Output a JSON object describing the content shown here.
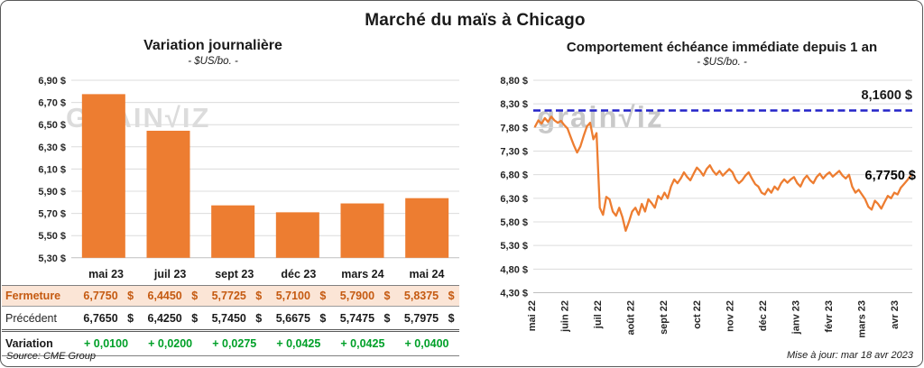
{
  "title": "Marché du maïs à Chicago",
  "watermark": "grain√iz",
  "source": "Source: CME Group",
  "updated": "Mise à jour: mar 18 avr 2023",
  "colors": {
    "series_orange": "#ED7D31",
    "target_blue": "#2323C8",
    "variation_green": "#00A028",
    "fermeture_text": "#C55A11",
    "fermeture_bg": "#FBE5D6",
    "gridline": "#DCDCDC",
    "axis": "#BFBFBF"
  },
  "chart_data": [
    {
      "type": "bar",
      "title": "Variation journalière",
      "subtitle": "- $US/bo. -",
      "categories": [
        "mai 23",
        "juil 23",
        "sept 23",
        "déc 23",
        "mars 24",
        "mai 24"
      ],
      "values": [
        6.775,
        6.445,
        5.7725,
        5.71,
        5.79,
        5.8375
      ],
      "ylim": [
        5.3,
        6.9
      ],
      "ytick_values": [
        6.9,
        6.7,
        6.5,
        6.3,
        6.1,
        5.9,
        5.7,
        5.5,
        5.3
      ],
      "ytick_labels": [
        "6,90 $",
        "6,70 $",
        "6,50 $",
        "6,30 $",
        "6,10 $",
        "5,90 $",
        "5,70 $",
        "5,50 $",
        "5,30 $"
      ],
      "bar_color": "#ED7D31",
      "grid": true,
      "legend": "none"
    },
    {
      "type": "line",
      "title": "Comportement échéance immédiate depuis 1 an",
      "subtitle": "- $US/bo. -",
      "x_labels": [
        "mai 22",
        "juin 22",
        "juil 22",
        "août 22",
        "sept 22",
        "oct 22",
        "nov 22",
        "déc 22",
        "janv 23",
        "févr 23",
        "mars 23",
        "avr 23"
      ],
      "ylim": [
        4.3,
        8.8
      ],
      "ytick_values": [
        8.8,
        8.3,
        7.8,
        7.3,
        6.8,
        6.3,
        5.8,
        5.3,
        4.8,
        4.3
      ],
      "ytick_labels": [
        "8,80 $",
        "8,30 $",
        "7,80 $",
        "7,30 $",
        "6,80 $",
        "6,30 $",
        "5,80 $",
        "5,30 $",
        "4,80 $",
        "4,30 $"
      ],
      "target_line": {
        "value": 8.16,
        "label": "8,1600 $",
        "color": "#2323C8",
        "style": "dashed"
      },
      "last_point": {
        "value": 6.775,
        "label": "6,7750 $"
      },
      "grid": true,
      "legend": "none",
      "series": [
        {
          "name": "échéance immédiate",
          "color": "#ED7D31",
          "values": [
            7.82,
            7.95,
            7.88,
            8.0,
            7.92,
            8.03,
            7.95,
            7.9,
            7.94,
            7.85,
            7.78,
            7.6,
            7.42,
            7.27,
            7.4,
            7.62,
            7.82,
            7.9,
            7.55,
            7.68,
            6.1,
            5.95,
            6.33,
            6.28,
            6.02,
            5.93,
            6.1,
            5.9,
            5.61,
            5.8,
            6.02,
            6.1,
            5.95,
            6.18,
            6.02,
            6.28,
            6.2,
            6.1,
            6.35,
            6.28,
            6.42,
            6.3,
            6.55,
            6.7,
            6.62,
            6.72,
            6.85,
            6.75,
            6.68,
            6.82,
            6.95,
            6.88,
            6.78,
            6.92,
            7.0,
            6.88,
            6.8,
            6.88,
            6.78,
            6.85,
            6.92,
            6.85,
            6.7,
            6.62,
            6.68,
            6.78,
            6.85,
            6.72,
            6.6,
            6.55,
            6.42,
            6.38,
            6.5,
            6.42,
            6.55,
            6.48,
            6.62,
            6.7,
            6.63,
            6.7,
            6.75,
            6.62,
            6.55,
            6.7,
            6.78,
            6.68,
            6.62,
            6.75,
            6.82,
            6.72,
            6.8,
            6.85,
            6.76,
            6.82,
            6.88,
            6.78,
            6.72,
            6.8,
            6.55,
            6.42,
            6.48,
            6.38,
            6.28,
            6.12,
            6.06,
            6.25,
            6.18,
            6.08,
            6.22,
            6.35,
            6.3,
            6.42,
            6.38,
            6.52,
            6.6,
            6.68,
            6.775
          ]
        }
      ]
    }
  ],
  "table": {
    "col_headers": [
      "mai 23",
      "juil 23",
      "sept 23",
      "déc 23",
      "mars 24",
      "mai 24"
    ],
    "currency": "$",
    "rows": [
      {
        "id": "fermeture",
        "label": "Fermeture",
        "show_currency": true,
        "values": [
          "6,7750",
          "6,4450",
          "5,7725",
          "5,7100",
          "5,7900",
          "5,8375"
        ]
      },
      {
        "id": "precedent",
        "label": "Précédent",
        "show_currency": true,
        "values": [
          "6,7650",
          "6,4250",
          "5,7450",
          "5,6675",
          "5,7475",
          "5,7975"
        ]
      },
      {
        "id": "variation",
        "label": "Variation",
        "show_currency": false,
        "values": [
          "+ 0,0100",
          "+ 0,0200",
          "+ 0,0275",
          "+ 0,0425",
          "+ 0,0425",
          "+ 0,0400"
        ]
      }
    ]
  }
}
